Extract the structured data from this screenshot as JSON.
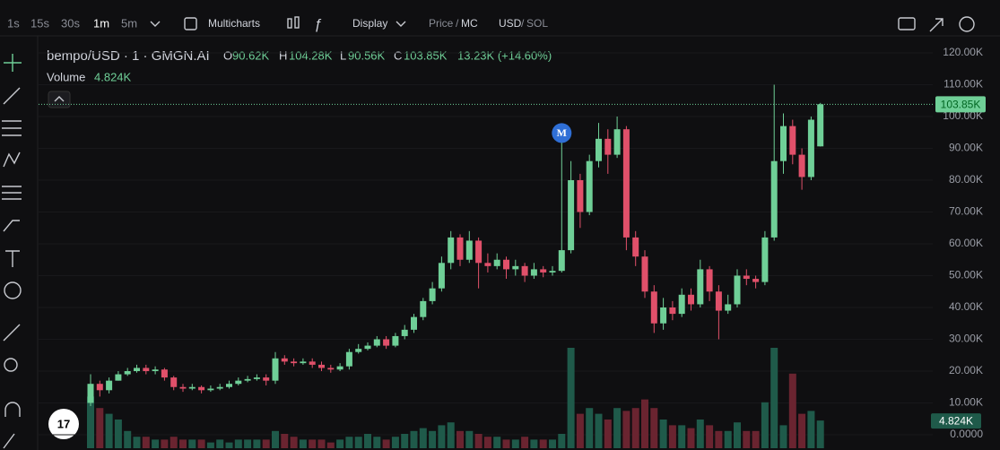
{
  "toolbar": {
    "intervals": [
      "1s",
      "15s",
      "30s",
      "1m",
      "5m"
    ],
    "multicharts": "Multicharts",
    "display": "Display",
    "price": "Price",
    "mc": "MC",
    "usd": "USD",
    "sol": "SOL"
  },
  "legend": {
    "symbol": "bempo/USD · 1 · GMGN.AI",
    "o": "O",
    "open": "90.62K",
    "h": "H",
    "high": "104.28K",
    "l": "L",
    "low": "90.56K",
    "c": "C",
    "close": "103.85K",
    "change": "13.23K (+14.60%)",
    "volume": "Volume",
    "volume_value": "4.824K"
  },
  "marker": "M",
  "chart_data": {
    "type": "candlestick",
    "open": [
      10,
      16,
      14,
      17,
      19,
      20,
      21,
      20,
      20.5,
      18,
      15,
      14.5,
      15,
      14,
      14.5,
      15,
      16,
      17,
      17.5,
      18,
      17,
      24,
      23,
      22.5,
      23,
      22,
      21,
      20.5,
      21.5,
      26,
      27,
      28,
      30,
      28,
      31,
      33,
      37,
      42,
      46,
      54,
      62,
      55,
      61,
      54,
      53,
      55,
      52,
      53,
      50,
      52,
      51,
      51.5,
      58,
      80,
      70,
      86,
      93,
      88,
      96,
      62,
      56,
      45,
      35,
      40,
      38,
      44,
      41,
      52,
      45,
      39,
      41,
      50,
      49,
      48,
      62,
      86,
      97,
      88,
      81,
      90.62
    ],
    "high": [
      19,
      17,
      18,
      20,
      21,
      22,
      22,
      21.5,
      21,
      18.5,
      16,
      16,
      15.5,
      15.5,
      16,
      17,
      18,
      18.5,
      19,
      19,
      26,
      25,
      24,
      24,
      24,
      23,
      22,
      22.5,
      27,
      28.5,
      29,
      31,
      31,
      32,
      34.5,
      38,
      43,
      48,
      56,
      64,
      63,
      64,
      62,
      57,
      57,
      56,
      55,
      54,
      54,
      53,
      53,
      92,
      86,
      82,
      88,
      98,
      96,
      100,
      97,
      64,
      58,
      47,
      43,
      42,
      46,
      46,
      55,
      53,
      47,
      44,
      52,
      52,
      50,
      64,
      110,
      101,
      99,
      90,
      100,
      104.28
    ],
    "low": [
      9,
      12,
      13,
      17,
      18.5,
      19.5,
      19,
      19,
      17,
      14,
      13.5,
      14,
      13,
      13.5,
      14,
      14.5,
      15.5,
      16.5,
      17,
      15.5,
      16,
      22,
      21.5,
      22,
      21,
      20,
      19.5,
      20,
      20.5,
      25.5,
      26.5,
      27.5,
      27,
      27.5,
      30,
      32,
      36,
      41,
      45,
      52,
      53,
      54,
      46,
      51,
      52,
      49,
      50,
      48,
      49,
      49.5,
      50,
      51,
      57,
      65,
      69,
      84,
      82,
      87,
      58,
      53,
      43,
      32,
      33,
      36,
      37,
      39,
      40,
      42,
      30,
      38,
      40,
      47,
      46,
      47,
      61,
      82,
      85,
      77,
      80,
      90.56
    ],
    "close": [
      16,
      14,
      17,
      19,
      20,
      21,
      20,
      20.5,
      18,
      15,
      14.5,
      15,
      14,
      14.5,
      15,
      16,
      17,
      17.5,
      18,
      17,
      24,
      23,
      22.5,
      23,
      22,
      21,
      20.5,
      21.5,
      26,
      27,
      28,
      30,
      28,
      31,
      33,
      37,
      42,
      46,
      54,
      62,
      55,
      61,
      54,
      53,
      55,
      52,
      53,
      50,
      52,
      51,
      51.5,
      58,
      80,
      70,
      86,
      93,
      88,
      96,
      62,
      56,
      45,
      35,
      40,
      38,
      44,
      41,
      52,
      45,
      39,
      41,
      50,
      49,
      48,
      62,
      86,
      97,
      88,
      81,
      99,
      103.85
    ],
    "volume": [
      9,
      7,
      6,
      5,
      3,
      2,
      2,
      1.5,
      1.5,
      2,
      1.5,
      1.5,
      1.5,
      1,
      1.5,
      1,
      1.5,
      1.5,
      1.5,
      1.5,
      3,
      2.5,
      2,
      1.5,
      1.5,
      1.5,
      1,
      1.5,
      2,
      2,
      2.5,
      2,
      1.5,
      2,
      2.5,
      3,
      3.5,
      3,
      4,
      4.5,
      3,
      3,
      2.5,
      2,
      2,
      1.5,
      1.5,
      2,
      1.5,
      1.5,
      1.5,
      2.5,
      17.5,
      6,
      7,
      6,
      5,
      7,
      6.5,
      7,
      8.5,
      7,
      5,
      4,
      4,
      3.5,
      5,
      4,
      3,
      3,
      4.5,
      3,
      3,
      8,
      17.5,
      4,
      13,
      6,
      6.5,
      4.824
    ],
    "last_price_label": "103.85K",
    "last_volume_label": "4.824K",
    "up_color": "#6fcf97",
    "down_color": "#e0506a",
    "up_volume_color": "#1f5a4a",
    "down_volume_color": "#6a2430",
    "ylim": [
      0,
      120
    ],
    "yticks": [
      {
        "value": 0,
        "label": "0.0000"
      },
      {
        "value": 10,
        "label": "10.00K"
      },
      {
        "value": 20,
        "label": "20.00K"
      },
      {
        "value": 30,
        "label": "30.00K"
      },
      {
        "value": 40,
        "label": "40.00K"
      },
      {
        "value": 50,
        "label": "50.00K"
      },
      {
        "value": 60,
        "label": "60.00K"
      },
      {
        "value": 70,
        "label": "70.00K"
      },
      {
        "value": 80,
        "label": "80.00K"
      },
      {
        "value": 90,
        "label": "90.00K"
      },
      {
        "value": 100,
        "label": "100.00K"
      },
      {
        "value": 110,
        "label": "110.00K"
      },
      {
        "value": 120,
        "label": "120.00K"
      }
    ],
    "marker_index": 51
  }
}
